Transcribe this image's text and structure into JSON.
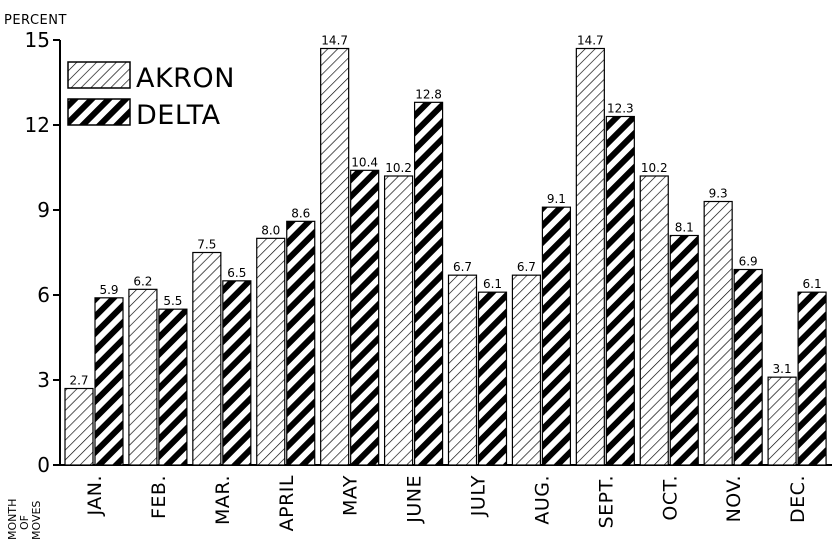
{
  "chart_data": {
    "type": "bar",
    "ylabel": "PERCENT",
    "xlabel": [
      "MONTH",
      "OF",
      "MOVES"
    ],
    "ylim": [
      0,
      15
    ],
    "yticks": [
      0,
      3,
      6,
      9,
      12,
      15
    ],
    "categories": [
      "JAN.",
      "FEB.",
      "MAR.",
      "APRIL",
      "MAY",
      "JUNE",
      "JULY",
      "AUG.",
      "SEPT.",
      "OCT.",
      "NOV.",
      "DEC."
    ],
    "series": [
      {
        "name": "AKRON",
        "values": [
          2.7,
          6.2,
          7.5,
          8.0,
          14.7,
          10.2,
          6.7,
          6.7,
          14.7,
          10.2,
          9.3,
          3.1
        ],
        "labels": [
          "2.7",
          "6.2",
          "7.5",
          "8.0",
          "14.7",
          "10.2",
          "6.7",
          "6.7",
          "14.7",
          "10.2",
          "9.3",
          "3.1"
        ],
        "pattern": "thin-hatch"
      },
      {
        "name": "DELTA",
        "values": [
          5.9,
          5.5,
          6.5,
          8.6,
          10.4,
          12.8,
          6.1,
          9.1,
          12.3,
          8.1,
          6.9,
          6.1
        ],
        "labels": [
          "5.9",
          "5.5",
          "6.5",
          "8.6",
          "10.4",
          "12.8",
          "6.1",
          "9.1",
          "12.3",
          "8.1",
          "6.9",
          "6.1"
        ],
        "pattern": "bold-hatch"
      }
    ],
    "grid": false,
    "legend": "top-left"
  }
}
